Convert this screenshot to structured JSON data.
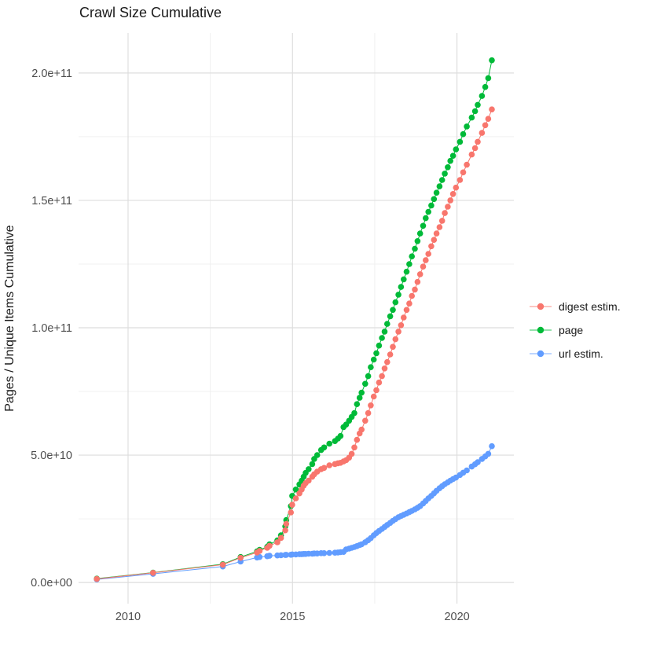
{
  "page": {
    "background": "#ffffff"
  },
  "chart_data": {
    "type": "scatter",
    "title": "Crawl Size Cumulative",
    "xlabel": "",
    "ylabel": "Pages / Unique Items Cumulative",
    "grid": true,
    "legend_position": "right",
    "value_unit": 10000000000.0,
    "x_axis": {
      "range": [
        2008.495,
        2021.73
      ],
      "ticks": [
        {
          "label": "2010",
          "value": 2010
        },
        {
          "label": "2015",
          "value": 2015
        },
        {
          "label": "2020",
          "value": 2020
        }
      ],
      "minor_ticks": [
        2012.5,
        2017.5
      ]
    },
    "y_axis": {
      "range_units": [
        -0.83,
        21.57
      ],
      "ticks": [
        {
          "label": "0.0e+00",
          "value": 0
        },
        {
          "label": "5.0e+10",
          "value": 5
        },
        {
          "label": "1.0e+11",
          "value": 10
        },
        {
          "label": "1.5e+11",
          "value": 15
        },
        {
          "label": "2.0e+11",
          "value": 20
        }
      ],
      "minor_ticks": [
        2.5,
        7.5,
        12.5,
        17.5
      ]
    },
    "series": [
      {
        "name": "digest estim.",
        "color": "#f8766d",
        "points": [
          [
            2009.05,
            0.14
          ],
          [
            2010.76,
            0.38
          ],
          [
            2012.88,
            0.7
          ],
          [
            2013.42,
            0.97
          ],
          [
            2013.92,
            1.18
          ],
          [
            2014.0,
            1.24
          ],
          [
            2014.23,
            1.36
          ],
          [
            2014.3,
            1.44
          ],
          [
            2014.54,
            1.58
          ],
          [
            2014.65,
            1.75
          ],
          [
            2014.78,
            2.05
          ],
          [
            2014.81,
            2.3
          ],
          [
            2014.95,
            2.75
          ],
          [
            2014.99,
            3.05
          ],
          [
            2015.1,
            3.3
          ],
          [
            2015.21,
            3.5
          ],
          [
            2015.28,
            3.65
          ],
          [
            2015.34,
            3.8
          ],
          [
            2015.4,
            3.9
          ],
          [
            2015.49,
            4.0
          ],
          [
            2015.6,
            4.15
          ],
          [
            2015.66,
            4.25
          ],
          [
            2015.75,
            4.35
          ],
          [
            2015.87,
            4.45
          ],
          [
            2015.96,
            4.5
          ],
          [
            2016.12,
            4.6
          ],
          [
            2016.29,
            4.65
          ],
          [
            2016.38,
            4.68
          ],
          [
            2016.46,
            4.7
          ],
          [
            2016.55,
            4.75
          ],
          [
            2016.63,
            4.8
          ],
          [
            2016.72,
            4.9
          ],
          [
            2016.8,
            5.05
          ],
          [
            2016.88,
            5.3
          ],
          [
            2016.96,
            5.6
          ],
          [
            2017.04,
            5.85
          ],
          [
            2017.1,
            6.0
          ],
          [
            2017.21,
            6.35
          ],
          [
            2017.3,
            6.65
          ],
          [
            2017.38,
            6.95
          ],
          [
            2017.47,
            7.3
          ],
          [
            2017.55,
            7.55
          ],
          [
            2017.63,
            7.85
          ],
          [
            2017.72,
            8.1
          ],
          [
            2017.8,
            8.4
          ],
          [
            2017.88,
            8.65
          ],
          [
            2017.97,
            8.95
          ],
          [
            2018.05,
            9.25
          ],
          [
            2018.13,
            9.55
          ],
          [
            2018.22,
            9.85
          ],
          [
            2018.3,
            10.1
          ],
          [
            2018.38,
            10.4
          ],
          [
            2018.47,
            10.7
          ],
          [
            2018.55,
            10.95
          ],
          [
            2018.63,
            11.25
          ],
          [
            2018.72,
            11.5
          ],
          [
            2018.8,
            11.8
          ],
          [
            2018.88,
            12.1
          ],
          [
            2018.97,
            12.4
          ],
          [
            2019.05,
            12.65
          ],
          [
            2019.13,
            12.9
          ],
          [
            2019.22,
            13.2
          ],
          [
            2019.3,
            13.45
          ],
          [
            2019.38,
            13.7
          ],
          [
            2019.47,
            13.95
          ],
          [
            2019.55,
            14.2
          ],
          [
            2019.63,
            14.5
          ],
          [
            2019.72,
            14.75
          ],
          [
            2019.8,
            15.0
          ],
          [
            2019.88,
            15.25
          ],
          [
            2019.97,
            15.5
          ],
          [
            2020.09,
            15.8
          ],
          [
            2020.19,
            16.1
          ],
          [
            2020.3,
            16.4
          ],
          [
            2020.45,
            16.8
          ],
          [
            2020.55,
            17.05
          ],
          [
            2020.63,
            17.3
          ],
          [
            2020.76,
            17.65
          ],
          [
            2020.86,
            17.95
          ],
          [
            2020.95,
            18.2
          ],
          [
            2021.06,
            18.57
          ]
        ]
      },
      {
        "name": "page",
        "color": "#00ba38",
        "points": [
          [
            2009.05,
            0.15
          ],
          [
            2010.76,
            0.39
          ],
          [
            2012.88,
            0.72
          ],
          [
            2013.42,
            1.0
          ],
          [
            2013.92,
            1.22
          ],
          [
            2014.0,
            1.28
          ],
          [
            2014.23,
            1.4
          ],
          [
            2014.3,
            1.5
          ],
          [
            2014.54,
            1.65
          ],
          [
            2014.65,
            1.85
          ],
          [
            2014.78,
            2.2
          ],
          [
            2014.81,
            2.45
          ],
          [
            2014.95,
            3.0
          ],
          [
            2014.99,
            3.4
          ],
          [
            2015.1,
            3.65
          ],
          [
            2015.21,
            3.85
          ],
          [
            2015.28,
            4.0
          ],
          [
            2015.34,
            4.15
          ],
          [
            2015.4,
            4.3
          ],
          [
            2015.49,
            4.45
          ],
          [
            2015.6,
            4.65
          ],
          [
            2015.66,
            4.85
          ],
          [
            2015.75,
            5.0
          ],
          [
            2015.87,
            5.2
          ],
          [
            2015.96,
            5.3
          ],
          [
            2016.12,
            5.45
          ],
          [
            2016.29,
            5.55
          ],
          [
            2016.38,
            5.65
          ],
          [
            2016.46,
            5.75
          ],
          [
            2016.55,
            6.1
          ],
          [
            2016.63,
            6.2
          ],
          [
            2016.72,
            6.35
          ],
          [
            2016.8,
            6.5
          ],
          [
            2016.88,
            6.65
          ],
          [
            2016.96,
            7.0
          ],
          [
            2017.04,
            7.25
          ],
          [
            2017.1,
            7.45
          ],
          [
            2017.21,
            7.8
          ],
          [
            2017.3,
            8.1
          ],
          [
            2017.38,
            8.45
          ],
          [
            2017.47,
            8.75
          ],
          [
            2017.55,
            9.0
          ],
          [
            2017.63,
            9.3
          ],
          [
            2017.72,
            9.6
          ],
          [
            2017.8,
            9.85
          ],
          [
            2017.88,
            10.15
          ],
          [
            2017.97,
            10.45
          ],
          [
            2018.05,
            10.7
          ],
          [
            2018.13,
            11.0
          ],
          [
            2018.22,
            11.3
          ],
          [
            2018.3,
            11.6
          ],
          [
            2018.38,
            11.9
          ],
          [
            2018.47,
            12.2
          ],
          [
            2018.55,
            12.5
          ],
          [
            2018.63,
            12.8
          ],
          [
            2018.72,
            13.1
          ],
          [
            2018.8,
            13.4
          ],
          [
            2018.88,
            13.7
          ],
          [
            2018.97,
            14.0
          ],
          [
            2019.05,
            14.3
          ],
          [
            2019.13,
            14.55
          ],
          [
            2019.22,
            14.8
          ],
          [
            2019.3,
            15.05
          ],
          [
            2019.38,
            15.3
          ],
          [
            2019.47,
            15.55
          ],
          [
            2019.55,
            15.8
          ],
          [
            2019.63,
            16.05
          ],
          [
            2019.72,
            16.3
          ],
          [
            2019.8,
            16.55
          ],
          [
            2019.88,
            16.75
          ],
          [
            2019.97,
            17.0
          ],
          [
            2020.09,
            17.3
          ],
          [
            2020.19,
            17.6
          ],
          [
            2020.3,
            17.9
          ],
          [
            2020.45,
            18.25
          ],
          [
            2020.55,
            18.5
          ],
          [
            2020.63,
            18.75
          ],
          [
            2020.76,
            19.1
          ],
          [
            2020.86,
            19.45
          ],
          [
            2020.95,
            19.8
          ],
          [
            2021.06,
            20.5
          ]
        ]
      },
      {
        "name": "url estim.",
        "color": "#619cff",
        "points": [
          [
            2009.05,
            0.12
          ],
          [
            2010.76,
            0.34
          ],
          [
            2012.88,
            0.63
          ],
          [
            2013.42,
            0.82
          ],
          [
            2013.92,
            0.98
          ],
          [
            2014.0,
            1.0
          ],
          [
            2014.23,
            1.03
          ],
          [
            2014.3,
            1.05
          ],
          [
            2014.54,
            1.06
          ],
          [
            2014.65,
            1.07
          ],
          [
            2014.78,
            1.08
          ],
          [
            2014.81,
            1.085
          ],
          [
            2014.95,
            1.09
          ],
          [
            2014.99,
            1.1
          ],
          [
            2015.1,
            1.1
          ],
          [
            2015.21,
            1.11
          ],
          [
            2015.28,
            1.11
          ],
          [
            2015.34,
            1.12
          ],
          [
            2015.4,
            1.12
          ],
          [
            2015.49,
            1.13
          ],
          [
            2015.6,
            1.13
          ],
          [
            2015.66,
            1.14
          ],
          [
            2015.75,
            1.14
          ],
          [
            2015.87,
            1.15
          ],
          [
            2015.96,
            1.15
          ],
          [
            2016.12,
            1.16
          ],
          [
            2016.29,
            1.17
          ],
          [
            2016.38,
            1.18
          ],
          [
            2016.46,
            1.19
          ],
          [
            2016.55,
            1.2
          ],
          [
            2016.63,
            1.3
          ],
          [
            2016.72,
            1.33
          ],
          [
            2016.8,
            1.36
          ],
          [
            2016.88,
            1.39
          ],
          [
            2016.96,
            1.43
          ],
          [
            2017.04,
            1.47
          ],
          [
            2017.1,
            1.5
          ],
          [
            2017.21,
            1.58
          ],
          [
            2017.3,
            1.66
          ],
          [
            2017.38,
            1.74
          ],
          [
            2017.47,
            1.85
          ],
          [
            2017.55,
            1.94
          ],
          [
            2017.63,
            2.02
          ],
          [
            2017.72,
            2.1
          ],
          [
            2017.8,
            2.18
          ],
          [
            2017.88,
            2.26
          ],
          [
            2017.97,
            2.34
          ],
          [
            2018.05,
            2.42
          ],
          [
            2018.13,
            2.49
          ],
          [
            2018.22,
            2.56
          ],
          [
            2018.3,
            2.61
          ],
          [
            2018.38,
            2.66
          ],
          [
            2018.47,
            2.71
          ],
          [
            2018.55,
            2.76
          ],
          [
            2018.63,
            2.81
          ],
          [
            2018.72,
            2.87
          ],
          [
            2018.8,
            2.93
          ],
          [
            2018.88,
            3.0
          ],
          [
            2018.97,
            3.1
          ],
          [
            2019.05,
            3.2
          ],
          [
            2019.13,
            3.3
          ],
          [
            2019.22,
            3.4
          ],
          [
            2019.3,
            3.5
          ],
          [
            2019.38,
            3.6
          ],
          [
            2019.47,
            3.7
          ],
          [
            2019.55,
            3.78
          ],
          [
            2019.63,
            3.86
          ],
          [
            2019.72,
            3.93
          ],
          [
            2019.8,
            4.0
          ],
          [
            2019.88,
            4.06
          ],
          [
            2019.97,
            4.12
          ],
          [
            2020.09,
            4.22
          ],
          [
            2020.19,
            4.31
          ],
          [
            2020.3,
            4.4
          ],
          [
            2020.45,
            4.55
          ],
          [
            2020.55,
            4.64
          ],
          [
            2020.63,
            4.72
          ],
          [
            2020.76,
            4.85
          ],
          [
            2020.86,
            4.95
          ],
          [
            2020.95,
            5.05
          ],
          [
            2021.06,
            5.35
          ]
        ]
      }
    ]
  }
}
